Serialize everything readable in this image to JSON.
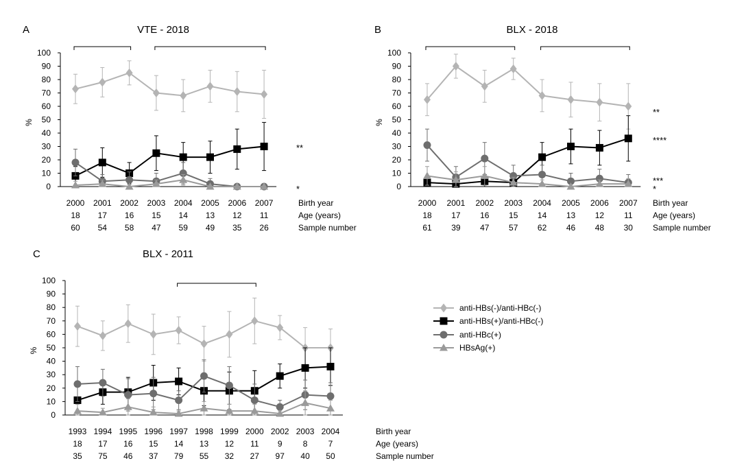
{
  "series_names": [
    "anti-HBs(-)/anti-HBc(-)",
    "anti-HBs(+)/anti-HBc(-)",
    "anti-HBc(+)",
    "HBsAg(+)"
  ],
  "styles": {
    "anti-HBs(-)/anti-HBc(-)": {
      "color": "#b4b4b4",
      "marker": "diamond",
      "icon": "diamond-marker-icon"
    },
    "anti-HBs(+)/anti-HBc(-)": {
      "color": "#000000",
      "marker": "square",
      "icon": "square-marker-icon"
    },
    "anti-HBc(+)": {
      "color": "#6e6e6e",
      "marker": "circle",
      "icon": "circle-marker-icon"
    },
    "HBsAg(+)": {
      "color": "#9a9a9a",
      "marker": "triangle",
      "icon": "triangle-marker-icon"
    }
  },
  "row_labels": {
    "birth": "Birth year",
    "age": "Age (years)",
    "sample": "Sample number"
  },
  "chart_data": [
    {
      "type": "line",
      "panel_label": "A",
      "title": "VTE - 2018",
      "ylabel": "%",
      "ylim": [
        0,
        100
      ],
      "yticks": [
        0,
        10,
        20,
        30,
        40,
        50,
        60,
        70,
        80,
        90,
        100
      ],
      "categories": [
        "2000",
        "2001",
        "2002",
        "2003",
        "2004",
        "2005",
        "2006",
        "2007"
      ],
      "ages": [
        "18",
        "17",
        "16",
        "15",
        "14",
        "13",
        "12",
        "11"
      ],
      "samples": [
        "60",
        "54",
        "58",
        "47",
        "59",
        "49",
        "35",
        "26"
      ],
      "series": [
        {
          "name": "anti-HBs(-)/anti-HBc(-)",
          "values": [
            73,
            78,
            85,
            70,
            68,
            75,
            71,
            69
          ],
          "err": [
            11,
            11,
            9,
            13,
            12,
            12,
            15,
            18
          ]
        },
        {
          "name": "anti-HBs(+)/anti-HBc(-)",
          "values": [
            8,
            18,
            10,
            25,
            22,
            22,
            28,
            30
          ],
          "err": [
            7,
            11,
            8,
            13,
            11,
            12,
            15,
            18
          ]
        },
        {
          "name": "anti-HBc(+)",
          "values": [
            18,
            4,
            5,
            4,
            10,
            2,
            0,
            0
          ],
          "err": [
            10,
            5,
            6,
            6,
            8,
            4,
            0,
            0
          ]
        },
        {
          "name": "HBsAg(+)",
          "values": [
            1,
            2,
            0,
            2,
            5,
            0,
            0,
            0
          ],
          "err": [
            3,
            3,
            0,
            3,
            4,
            0,
            0,
            0
          ]
        }
      ],
      "brackets": [
        [
          0,
          2
        ],
        [
          3,
          7
        ]
      ],
      "significance": [
        "**",
        "*"
      ]
    },
    {
      "type": "line",
      "panel_label": "B",
      "title": "BLX - 2018",
      "ylabel": "%",
      "ylim": [
        0,
        100
      ],
      "yticks": [
        0,
        10,
        20,
        30,
        40,
        50,
        60,
        70,
        80,
        90,
        100
      ],
      "categories": [
        "2000",
        "2001",
        "2002",
        "2003",
        "2004",
        "2005",
        "2006",
        "2007"
      ],
      "ages": [
        "18",
        "17",
        "16",
        "15",
        "14",
        "13",
        "12",
        "11"
      ],
      "samples": [
        "61",
        "39",
        "47",
        "57",
        "62",
        "46",
        "48",
        "30"
      ],
      "series": [
        {
          "name": "anti-HBs(-)/anti-HBc(-)",
          "values": [
            65,
            90,
            75,
            88,
            68,
            65,
            63,
            60
          ],
          "err": [
            12,
            9,
            12,
            8,
            12,
            13,
            14,
            17
          ]
        },
        {
          "name": "anti-HBs(+)/anti-HBc(-)",
          "values": [
            3,
            2,
            4,
            3,
            22,
            30,
            29,
            36
          ],
          "err": [
            4,
            4,
            5,
            4,
            11,
            13,
            13,
            17
          ]
        },
        {
          "name": "anti-HBc(+)",
          "values": [
            31,
            7,
            21,
            8,
            9,
            4,
            6,
            3
          ],
          "err": [
            12,
            8,
            12,
            8,
            7,
            6,
            7,
            6
          ]
        },
        {
          "name": "HBsAg(+)",
          "values": [
            8,
            5,
            8,
            3,
            2,
            0,
            2,
            2
          ],
          "err": [
            7,
            6,
            7,
            4,
            3,
            0,
            3,
            4
          ]
        }
      ],
      "brackets": [
        [
          0,
          3
        ],
        [
          4,
          7
        ]
      ],
      "significance": [
        "**",
        "****",
        "***",
        "*"
      ]
    },
    {
      "type": "line",
      "panel_label": "C",
      "title": "BLX - 2011",
      "ylabel": "%",
      "ylim": [
        0,
        100
      ],
      "yticks": [
        0,
        10,
        20,
        30,
        40,
        50,
        60,
        70,
        80,
        90,
        100
      ],
      "categories": [
        "1993",
        "1994",
        "1995",
        "1996",
        "1997",
        "1998",
        "1999",
        "2000",
        "2002",
        "2003",
        "2004"
      ],
      "ages": [
        "18",
        "17",
        "16",
        "15",
        "14",
        "13",
        "12",
        "11",
        "9",
        "8",
        "7"
      ],
      "samples": [
        "35",
        "75",
        "46",
        "37",
        "79",
        "55",
        "32",
        "27",
        "97",
        "40",
        "50"
      ],
      "series": [
        {
          "name": "anti-HBs(-)/anti-HBc(-)",
          "values": [
            66,
            59,
            68,
            60,
            63,
            53,
            60,
            70,
            65,
            50,
            50
          ],
          "err": [
            15,
            11,
            14,
            15,
            10,
            13,
            17,
            17,
            9,
            15,
            14
          ]
        },
        {
          "name": "anti-HBs(+)/anti-HBc(-)",
          "values": [
            11,
            17,
            17,
            24,
            25,
            18,
            18,
            18,
            29,
            35,
            36
          ],
          "err": [
            10,
            9,
            11,
            13,
            10,
            11,
            14,
            15,
            9,
            15,
            14
          ]
        },
        {
          "name": "anti-HBc(+)",
          "values": [
            23,
            24,
            15,
            16,
            11,
            29,
            22,
            11,
            6,
            15,
            14
          ],
          "err": [
            13,
            10,
            12,
            12,
            7,
            12,
            14,
            12,
            5,
            11,
            10
          ]
        },
        {
          "name": "HBsAg(+)",
          "values": [
            3,
            2,
            6,
            2,
            1,
            5,
            3,
            3,
            1,
            9,
            5
          ],
          "err": [
            5,
            3,
            6,
            4,
            2,
            5,
            5,
            5,
            2,
            9,
            6
          ]
        }
      ],
      "brackets": [
        [
          4,
          7
        ]
      ],
      "significance": []
    }
  ]
}
